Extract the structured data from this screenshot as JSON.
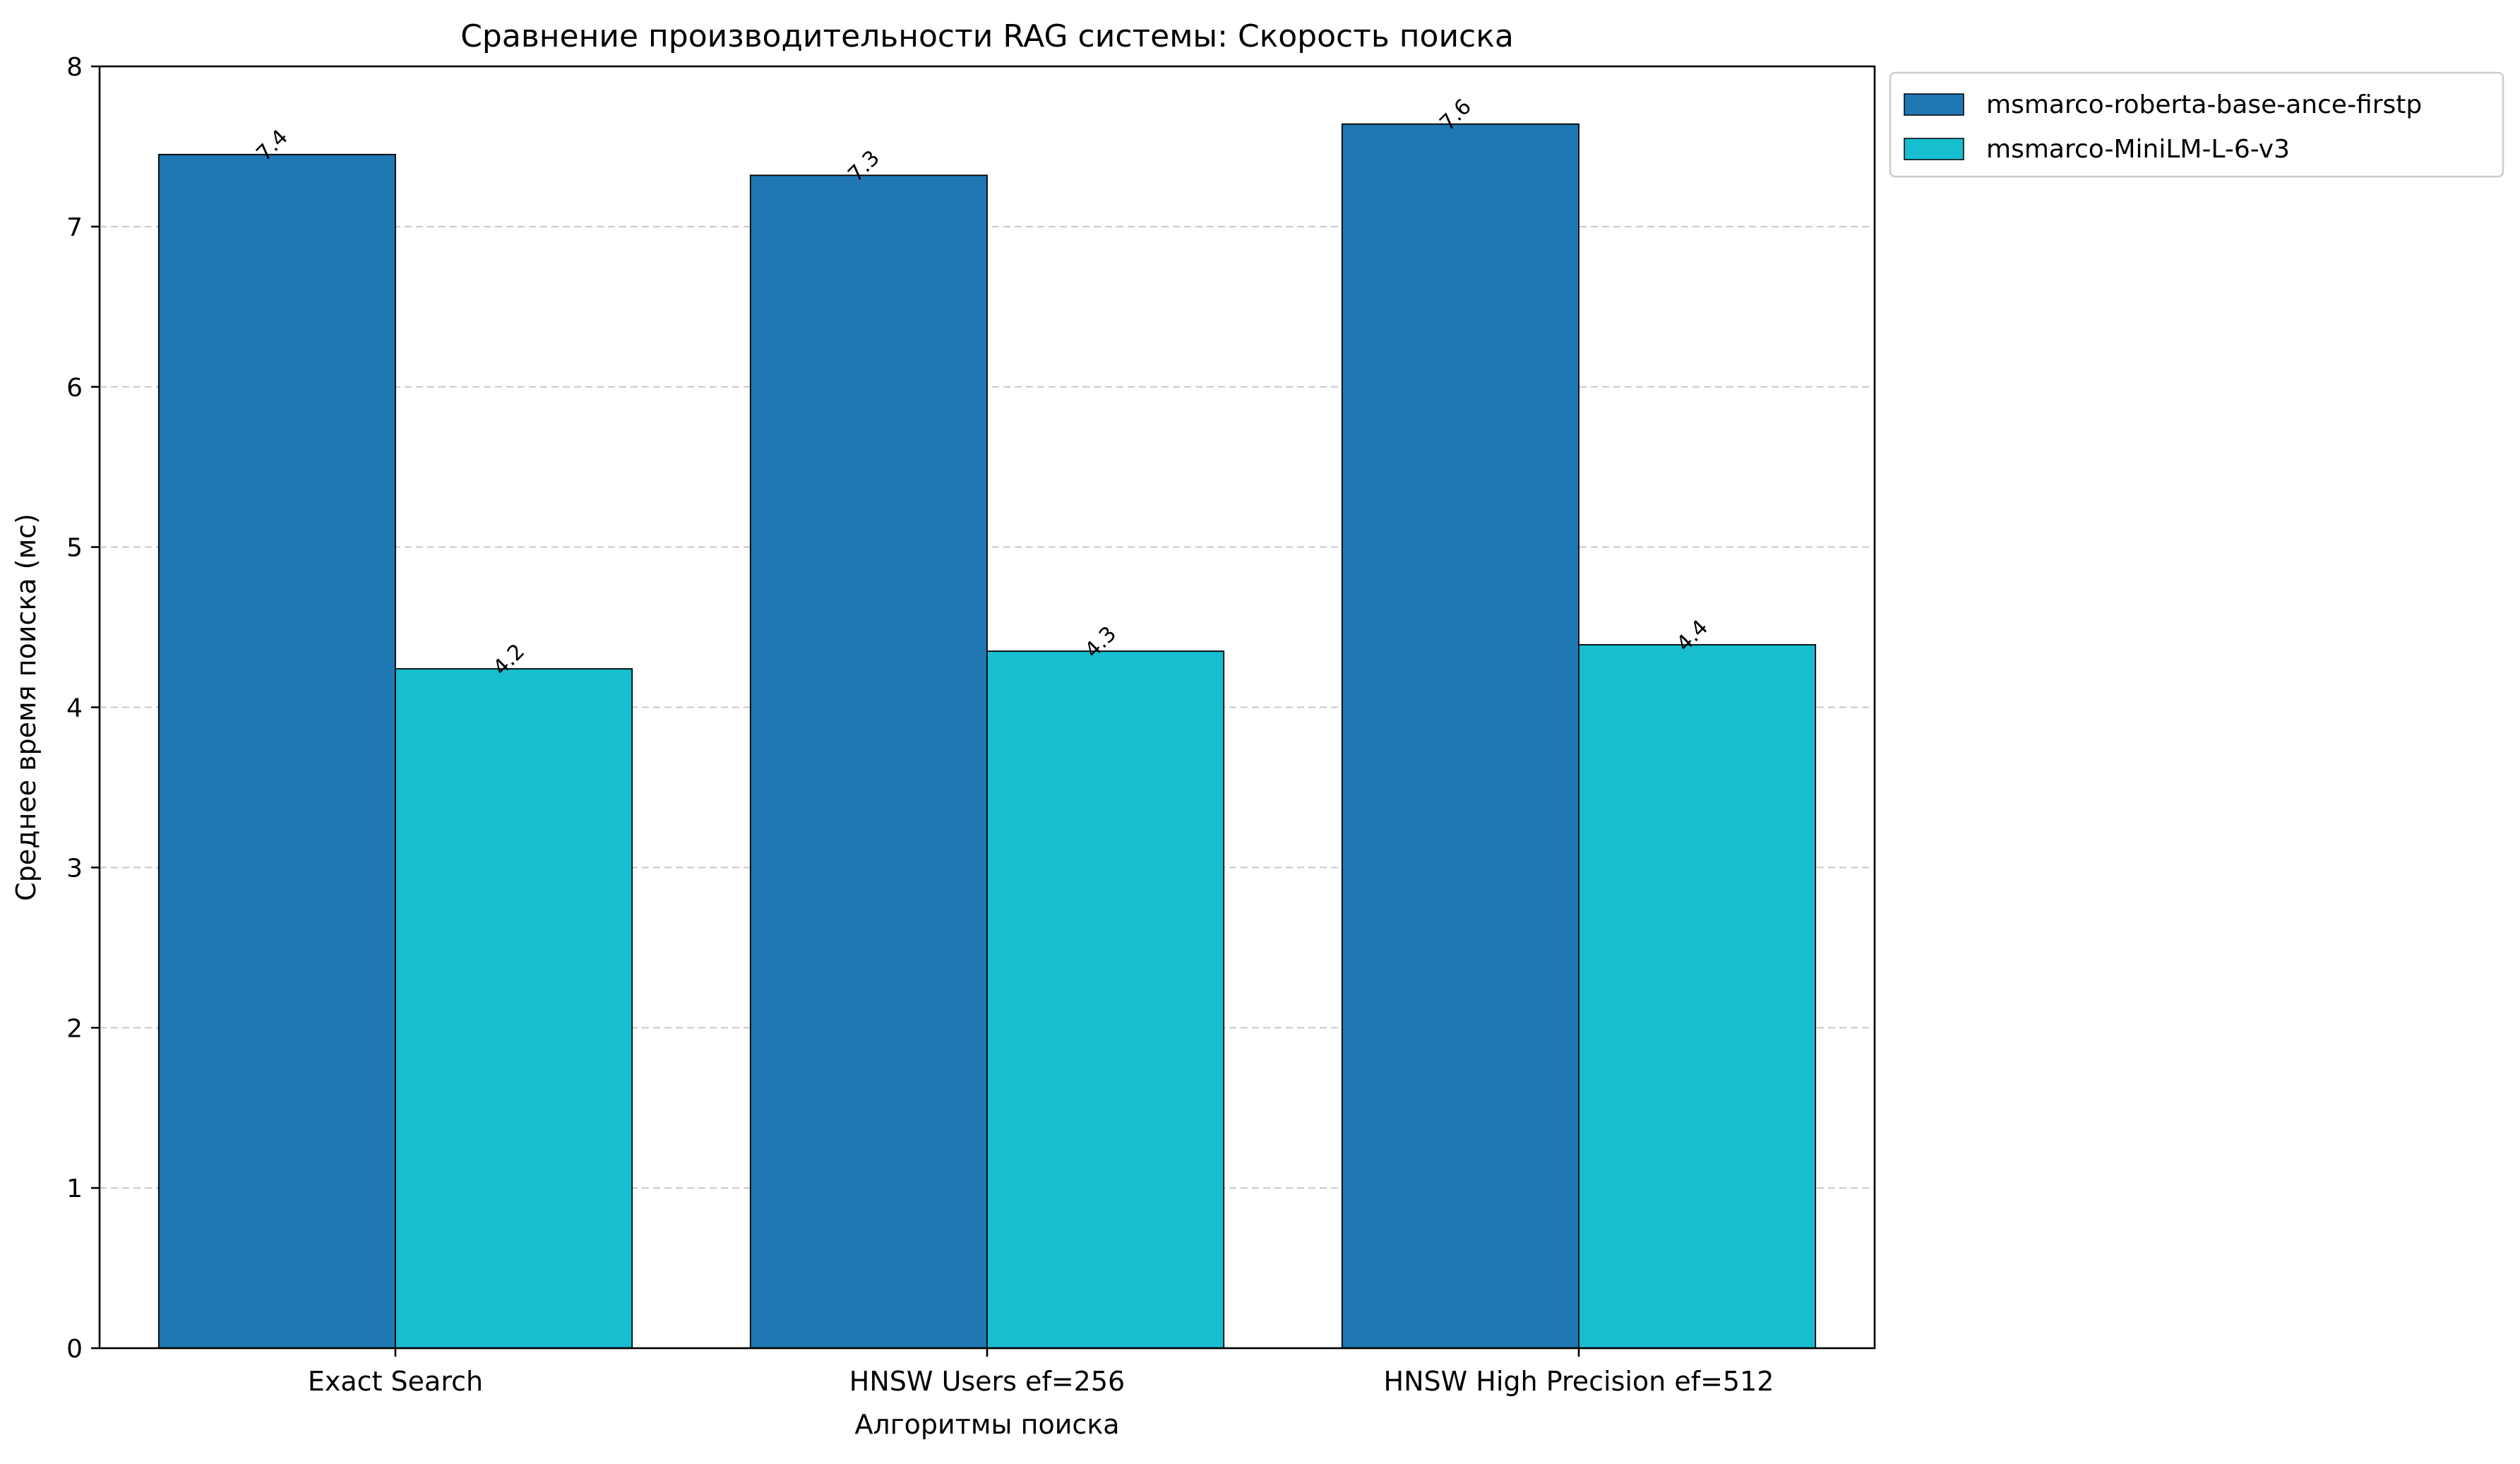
{
  "chart_data": {
    "type": "bar",
    "title": "Сравнение производительности RAG системы: Скорость поиска",
    "xlabel": "Алгоритмы поиска",
    "ylabel": "Среднее время поиска (мс)",
    "categories": [
      "Exact Search",
      "HNSW Users ef=256",
      "HNSW High Precision ef=512"
    ],
    "series": [
      {
        "name": "msmarco-roberta-base-ance-firstp",
        "color": "#1f77b4",
        "values": [
          7.45,
          7.32,
          7.64
        ],
        "labels": [
          "7.4",
          "7.3",
          "7.6"
        ]
      },
      {
        "name": "msmarco-MiniLM-L-6-v3",
        "color": "#17becf",
        "values": [
          4.24,
          4.35,
          4.39
        ],
        "labels": [
          "4.2",
          "4.3",
          "4.4"
        ]
      }
    ],
    "ylim": [
      0,
      8
    ],
    "yticks": [
      "0",
      "1",
      "2",
      "3",
      "4",
      "5",
      "6",
      "7",
      "8"
    ],
    "grid": "y-dashed",
    "legend_position": "outside-top-right"
  }
}
